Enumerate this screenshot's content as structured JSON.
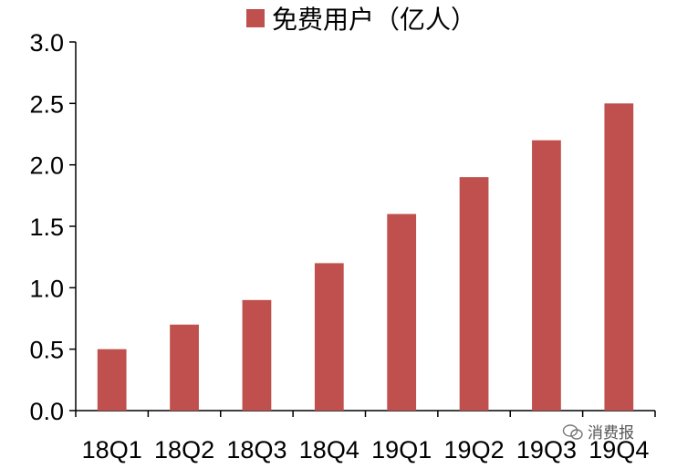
{
  "chart_data": {
    "type": "bar",
    "title": "",
    "xlabel": "",
    "ylabel": "",
    "categories": [
      "18Q1",
      "18Q2",
      "18Q3",
      "18Q4",
      "19Q1",
      "19Q2",
      "19Q3",
      "19Q4"
    ],
    "series": [
      {
        "name": "免费用户（亿人）",
        "values": [
          0.5,
          0.7,
          0.9,
          1.2,
          1.6,
          1.9,
          2.2,
          2.5
        ],
        "color": "#c0504d"
      }
    ],
    "ylim": [
      0,
      3.0
    ],
    "yticks": [
      "0.0",
      "0.5",
      "1.0",
      "1.5",
      "2.0",
      "2.5",
      "3.0"
    ],
    "grid": false,
    "legend": "top"
  },
  "watermark": {
    "text": "消费报",
    "icon": "wechat-icon"
  }
}
